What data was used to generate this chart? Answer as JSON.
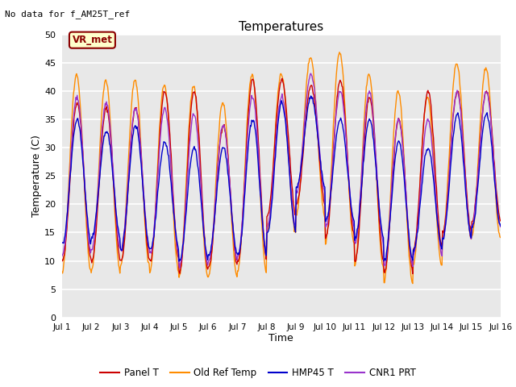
{
  "title": "Temperatures",
  "xlabel": "Time",
  "ylabel": "Temperature (C)",
  "ylim": [
    0,
    50
  ],
  "xlim": [
    0,
    15
  ],
  "annotation_text": "No data for f_AM25T_ref",
  "vr_met_label": "VR_met",
  "plot_bg_color": "#e8e8e8",
  "fig_bg_color": "#ffffff",
  "legend": [
    "Panel T",
    "Old Ref Temp",
    "HMP45 T",
    "CNR1 PRT"
  ],
  "legend_colors": [
    "#cc0000",
    "#ff8c00",
    "#0000cc",
    "#9933cc"
  ],
  "xtick_labels": [
    "Jul 1",
    "Jul 2",
    "Jul 3",
    "Jul 4",
    "Jul 5",
    "Jul 6",
    "Jul 7",
    "Jul 8",
    "Jul 9",
    "Jul 10",
    "Jul 11",
    "Jul 12",
    "Jul 13",
    "Jul 14",
    "Jul 15",
    "Jul 16"
  ],
  "xtick_positions": [
    0,
    1,
    2,
    3,
    4,
    5,
    6,
    7,
    8,
    9,
    10,
    11,
    12,
    13,
    14,
    15
  ],
  "ytick_labels": [
    "0",
    "5",
    "10",
    "15",
    "20",
    "25",
    "30",
    "35",
    "40",
    "45",
    "50"
  ],
  "ytick_positions": [
    0,
    5,
    10,
    15,
    20,
    25,
    30,
    35,
    40,
    45,
    50
  ]
}
